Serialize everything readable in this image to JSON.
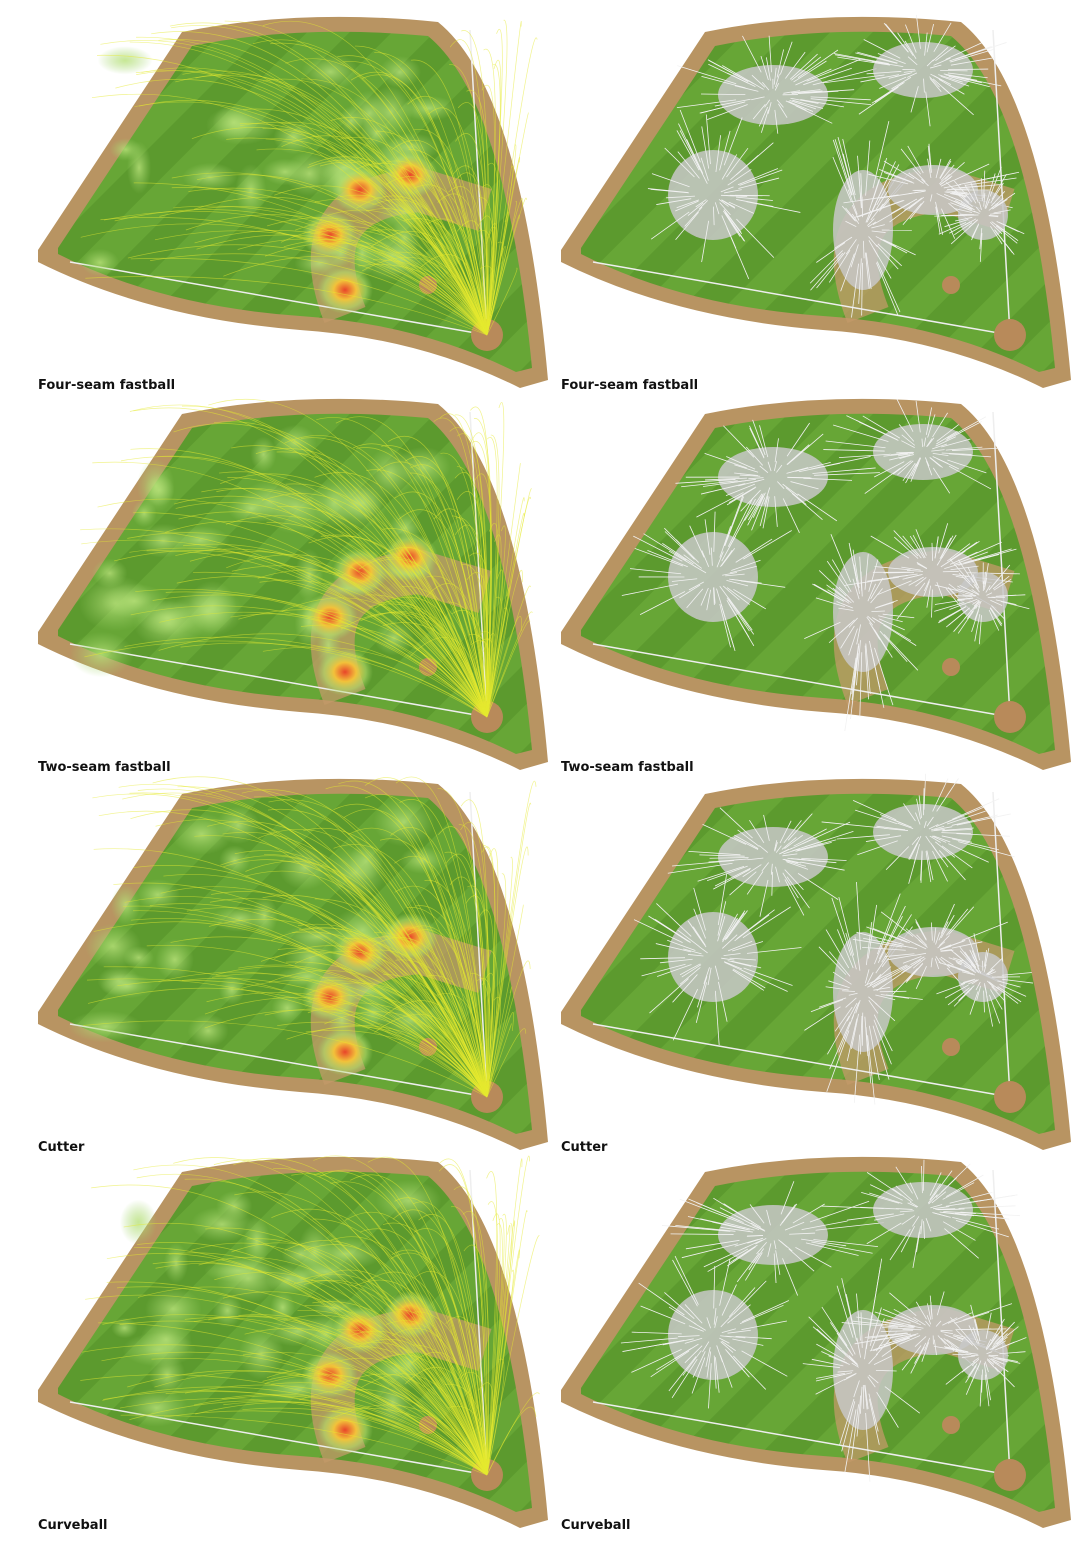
{
  "panels": [
    {
      "caption": "Four-seam fastball"
    },
    {
      "caption": "Four-seam fastball"
    },
    {
      "caption": "Two-seam fastball"
    },
    {
      "caption": "Two-seam fastball"
    },
    {
      "caption": "Cutter"
    },
    {
      "caption": "Cutter"
    },
    {
      "caption": "Curveball"
    },
    {
      "caption": "Curveball"
    }
  ]
}
